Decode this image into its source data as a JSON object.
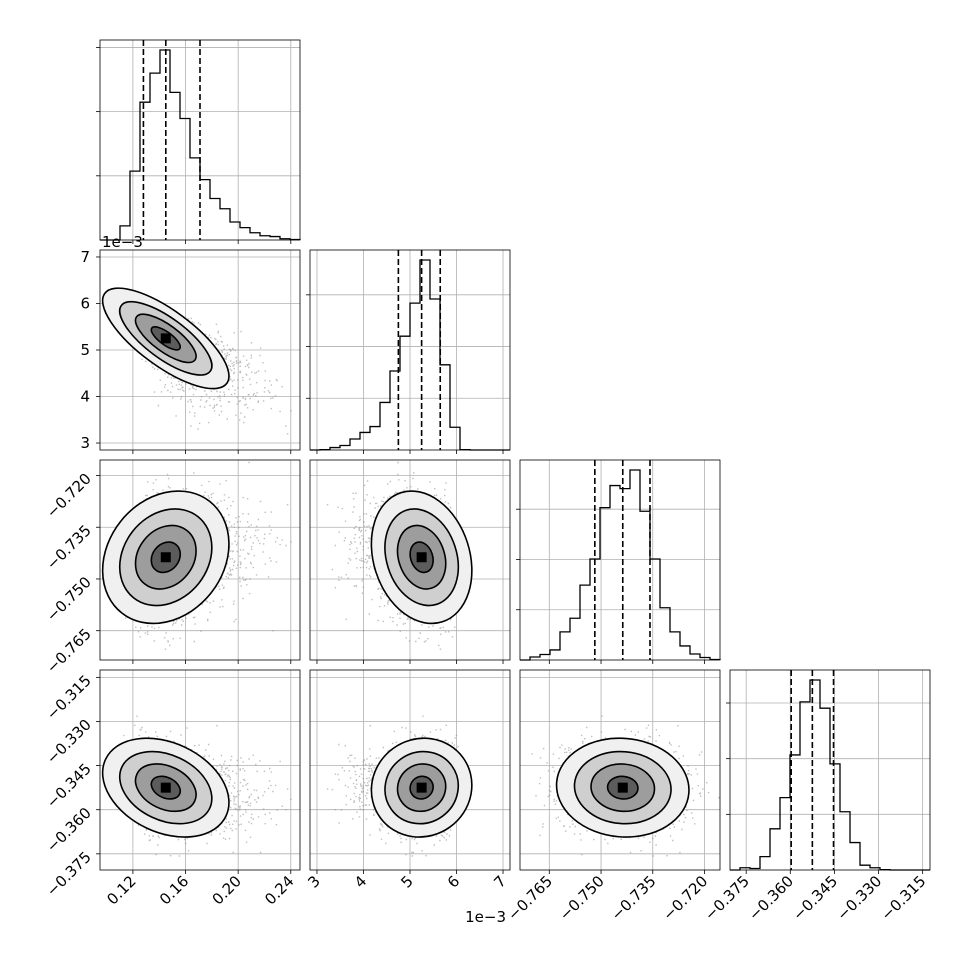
{
  "chart_data": {
    "type": "corner",
    "parameters": [
      {
        "offset_text": "",
        "ticks": [
          0.12,
          0.16,
          0.2,
          0.24
        ],
        "tick_labels": [
          "0.12",
          "0.16",
          "0.20",
          "0.24"
        ],
        "lim": [
          0.095,
          0.247
        ],
        "median": 0.145,
        "quantile_low": 0.128,
        "quantile_high": 0.171,
        "mean": 0.148,
        "sd": 0.02,
        "skew": 0.8
      },
      {
        "offset_text": "1e−3",
        "ticks": [
          3,
          4,
          5,
          6,
          7
        ],
        "tick_labels": [
          "3",
          "4",
          "5",
          "6",
          "7"
        ],
        "lim": [
          2.85,
          7.15
        ],
        "median": 5.25,
        "quantile_low": 4.75,
        "quantile_high": 5.65,
        "mean": 5.2,
        "sd": 0.45,
        "skew": -0.6
      },
      {
        "offset_text": "",
        "ticks": [
          -0.765,
          -0.75,
          -0.735,
          -0.72
        ],
        "tick_labels": [
          "−0.765",
          "−0.750",
          "−0.735",
          "−0.720"
        ],
        "lim": [
          -0.7735,
          -0.7155
        ],
        "median": -0.7437,
        "quantile_low": -0.7518,
        "quantile_high": -0.7358,
        "mean": -0.7437,
        "sd": 0.008,
        "skew": 0
      },
      {
        "offset_text": "",
        "ticks": [
          -0.375,
          -0.36,
          -0.345,
          -0.33,
          -0.315
        ],
        "tick_labels": [
          "−0.375",
          "−0.360",
          "−0.345",
          "−0.330",
          "−0.315"
        ],
        "lim": [
          -0.3805,
          -0.3125
        ],
        "median": -0.3525,
        "quantile_low": -0.3597,
        "quantile_high": -0.3453,
        "mean": -0.3525,
        "sd": 0.007,
        "skew": 0
      }
    ],
    "correlations": [
      [
        1,
        -0.75,
        0.2,
        -0.3
      ],
      [
        -0.75,
        1,
        -0.2,
        0.05
      ],
      [
        0.2,
        -0.2,
        1,
        -0.05
      ],
      [
        -0.3,
        0.05,
        -0.05,
        1
      ]
    ],
    "histogram_bins": 20,
    "quantile_lines": "dashed",
    "grid": true,
    "samples_shown": "scatter points with density contours and shaded 2d histogram"
  }
}
